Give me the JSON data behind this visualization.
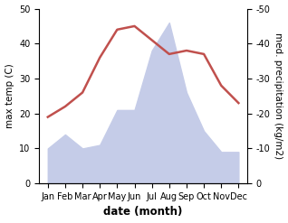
{
  "months": [
    "Jan",
    "Feb",
    "Mar",
    "Apr",
    "May",
    "Jun",
    "Jul",
    "Aug",
    "Sep",
    "Oct",
    "Nov",
    "Dec"
  ],
  "temperature": [
    19,
    22,
    26,
    36,
    44,
    45,
    41,
    37,
    38,
    37,
    28,
    23
  ],
  "precipitation": [
    10,
    14,
    10,
    11,
    21,
    21,
    38,
    46,
    26,
    15,
    9,
    9
  ],
  "temp_color": "#c0504d",
  "precip_fill_color": "#c5cce8",
  "ylabel_left": "max temp (C)",
  "ylabel_right": "med. precipitation (kg/m2)",
  "xlabel": "date (month)",
  "ylim_left": [
    0,
    50
  ],
  "ylim_right": [
    0,
    50
  ],
  "yticks_left": [
    0,
    10,
    20,
    30,
    40,
    50
  ],
  "yticks_right": [
    0,
    10,
    20,
    30,
    40,
    50
  ],
  "bg_color": "#ffffff",
  "line_width": 1.8,
  "label_fontsize": 7.5,
  "tick_fontsize": 7
}
